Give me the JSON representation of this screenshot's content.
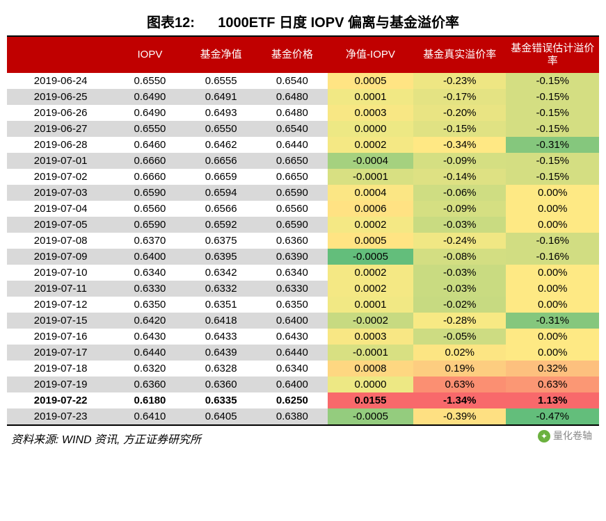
{
  "title_prefix": "图表12:",
  "title_main": "1000ETF 日度 IOPV 偏离与基金溢价率",
  "footer": "资料来源: WIND 资讯, 方正证券研究所",
  "watermark": "量化卷轴",
  "columns": [
    "",
    "IOPV",
    "基金净值",
    "基金价格",
    "净值-IOPV",
    "基金真实溢价率",
    "基金错误估计溢价率"
  ],
  "col_widths": [
    "140px",
    "90px",
    "90px",
    "90px",
    "110px",
    "120px",
    "120px"
  ],
  "row_alt_colors": [
    "#ffffff",
    "#d9d9d9"
  ],
  "heatmap_legend": {
    "low": "#63be7b",
    "mid": "#ffeb84",
    "high": "#f8696b"
  },
  "bold_row_index": 20,
  "rows": [
    {
      "date": "2019-06-24",
      "iopv": "0.6550",
      "nav": "0.6555",
      "price": "0.6540",
      "diff": "0.0005",
      "real": "-0.23%",
      "err": "-0.15%",
      "c_diff": "#ffe483",
      "c_real": "#eee683",
      "c_err": "#d4de82"
    },
    {
      "date": "2019-06-25",
      "iopv": "0.6490",
      "nav": "0.6491",
      "price": "0.6480",
      "diff": "0.0001",
      "real": "-0.17%",
      "err": "-0.15%",
      "c_diff": "#f1e884",
      "c_real": "#e4e383",
      "c_err": "#d4de82"
    },
    {
      "date": "2019-06-26",
      "iopv": "0.6490",
      "nav": "0.6493",
      "price": "0.6480",
      "diff": "0.0003",
      "real": "-0.20%",
      "err": "-0.15%",
      "c_diff": "#f8e784",
      "c_real": "#e9e483",
      "c_err": "#d4de82"
    },
    {
      "date": "2019-06-27",
      "iopv": "0.6550",
      "nav": "0.6550",
      "price": "0.6540",
      "diff": "0.0000",
      "real": "-0.15%",
      "err": "-0.15%",
      "c_diff": "#ede884",
      "c_real": "#e0e283",
      "c_err": "#d4de82"
    },
    {
      "date": "2019-06-28",
      "iopv": "0.6460",
      "nav": "0.6462",
      "price": "0.6440",
      "diff": "0.0002",
      "real": "-0.34%",
      "err": "-0.31%",
      "c_diff": "#f4e884",
      "c_real": "#ffe884",
      "c_err": "#85c77d"
    },
    {
      "date": "2019-07-01",
      "iopv": "0.6660",
      "nav": "0.6656",
      "price": "0.6650",
      "diff": "-0.0004",
      "real": "-0.09%",
      "err": "-0.15%",
      "c_diff": "#a5d17f",
      "c_real": "#d5df82",
      "c_err": "#d4de82"
    },
    {
      "date": "2019-07-02",
      "iopv": "0.6660",
      "nav": "0.6659",
      "price": "0.6650",
      "diff": "-0.0001",
      "real": "-0.14%",
      "err": "-0.15%",
      "c_diff": "#d8e082",
      "c_real": "#dee183",
      "c_err": "#d4de82"
    },
    {
      "date": "2019-07-03",
      "iopv": "0.6590",
      "nav": "0.6594",
      "price": "0.6590",
      "diff": "0.0004",
      "real": "-0.06%",
      "err": "0.00%",
      "c_diff": "#fbe684",
      "c_real": "#cfdd82",
      "c_err": "#fee984"
    },
    {
      "date": "2019-07-04",
      "iopv": "0.6560",
      "nav": "0.6566",
      "price": "0.6560",
      "diff": "0.0006",
      "real": "-0.09%",
      "err": "0.00%",
      "c_diff": "#ffe283",
      "c_real": "#d5df82",
      "c_err": "#fee984"
    },
    {
      "date": "2019-07-05",
      "iopv": "0.6590",
      "nav": "0.6592",
      "price": "0.6590",
      "diff": "0.0002",
      "real": "-0.03%",
      "err": "0.00%",
      "c_diff": "#f4e884",
      "c_real": "#c9db81",
      "c_err": "#fee984"
    },
    {
      "date": "2019-07-08",
      "iopv": "0.6370",
      "nav": "0.6375",
      "price": "0.6360",
      "diff": "0.0005",
      "real": "-0.24%",
      "err": "-0.16%",
      "c_diff": "#ffe483",
      "c_real": "#f0e784",
      "c_err": "#d1dd82"
    },
    {
      "date": "2019-07-09",
      "iopv": "0.6400",
      "nav": "0.6395",
      "price": "0.6390",
      "diff": "-0.0005",
      "real": "-0.08%",
      "err": "-0.16%",
      "c_diff": "#63be7b",
      "c_real": "#d3de82",
      "c_err": "#d1dd82"
    },
    {
      "date": "2019-07-10",
      "iopv": "0.6340",
      "nav": "0.6342",
      "price": "0.6340",
      "diff": "0.0002",
      "real": "-0.03%",
      "err": "0.00%",
      "c_diff": "#f4e884",
      "c_real": "#c9db81",
      "c_err": "#fee984"
    },
    {
      "date": "2019-07-11",
      "iopv": "0.6330",
      "nav": "0.6332",
      "price": "0.6330",
      "diff": "0.0002",
      "real": "-0.03%",
      "err": "0.00%",
      "c_diff": "#f4e884",
      "c_real": "#c9db81",
      "c_err": "#fee984"
    },
    {
      "date": "2019-07-12",
      "iopv": "0.6350",
      "nav": "0.6351",
      "price": "0.6350",
      "diff": "0.0001",
      "real": "-0.02%",
      "err": "0.00%",
      "c_diff": "#f1e884",
      "c_real": "#c7da81",
      "c_err": "#fee984"
    },
    {
      "date": "2019-07-15",
      "iopv": "0.6420",
      "nav": "0.6418",
      "price": "0.6400",
      "diff": "-0.0002",
      "real": "-0.28%",
      "err": "-0.31%",
      "c_diff": "#c7da81",
      "c_real": "#f7e984",
      "c_err": "#85c77d"
    },
    {
      "date": "2019-07-16",
      "iopv": "0.6430",
      "nav": "0.6433",
      "price": "0.6430",
      "diff": "0.0003",
      "real": "-0.05%",
      "err": "0.00%",
      "c_diff": "#f8e784",
      "c_real": "#cddc82",
      "c_err": "#fee984"
    },
    {
      "date": "2019-07-17",
      "iopv": "0.6440",
      "nav": "0.6439",
      "price": "0.6440",
      "diff": "-0.0001",
      "real": "0.02%",
      "err": "0.00%",
      "c_diff": "#d8e082",
      "c_real": "#fce583",
      "c_err": "#fee984"
    },
    {
      "date": "2019-07-18",
      "iopv": "0.6320",
      "nav": "0.6328",
      "price": "0.6340",
      "diff": "0.0008",
      "real": "0.19%",
      "err": "0.32%",
      "c_diff": "#fed781",
      "c_real": "#fdcd80",
      "c_err": "#fdc07e"
    },
    {
      "date": "2019-07-19",
      "iopv": "0.6360",
      "nav": "0.6360",
      "price": "0.6400",
      "diff": "0.0000",
      "real": "0.63%",
      "err": "0.63%",
      "c_diff": "#ede884",
      "c_real": "#fb8f72",
      "c_err": "#fb9774"
    },
    {
      "date": "2019-07-22",
      "iopv": "0.6180",
      "nav": "0.6335",
      "price": "0.6250",
      "diff": "0.0155",
      "real": "-1.34%",
      "err": "1.13%",
      "c_diff": "#f8696b",
      "c_real": "#f8696b",
      "c_err": "#f8696b"
    },
    {
      "date": "2019-07-23",
      "iopv": "0.6410",
      "nav": "0.6405",
      "price": "0.6380",
      "diff": "-0.0005",
      "real": "-0.39%",
      "err": "-0.47%",
      "c_diff": "#94cc7e",
      "c_real": "#fee082",
      "c_err": "#63be7b"
    }
  ]
}
